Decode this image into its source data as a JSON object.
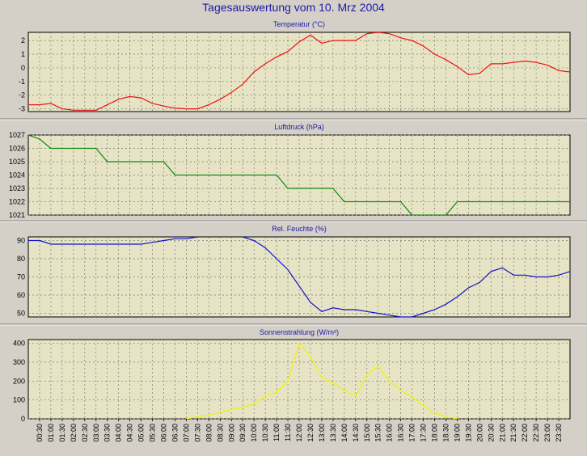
{
  "title": "Tagesauswertung vom 10. Mrz 2004",
  "chart_data": [
    {
      "type": "line",
      "title": "Temperatur (°C)",
      "color": "#ee1111",
      "ylim": [
        -3.2,
        2.6
      ],
      "yticks": [
        -3,
        -2,
        -1,
        0,
        1,
        2
      ],
      "x": [
        0,
        0.5,
        1,
        1.5,
        2,
        2.5,
        3,
        3.5,
        4,
        4.5,
        5,
        5.5,
        6,
        6.5,
        7,
        7.5,
        8,
        8.5,
        9,
        9.5,
        10,
        10.5,
        11,
        11.5,
        12,
        12.5,
        13,
        13.5,
        14,
        14.5,
        15,
        15.5,
        16,
        16.5,
        17,
        17.5,
        18,
        18.5,
        19,
        19.5,
        20,
        20.5,
        21,
        21.5,
        22,
        22.5,
        23,
        23.5,
        24
      ],
      "values": [
        -2.7,
        -2.7,
        -2.6,
        -3.0,
        -3.1,
        -3.1,
        -3.1,
        -2.7,
        -2.3,
        -2.1,
        -2.2,
        -2.6,
        -2.8,
        -2.95,
        -3.0,
        -3.0,
        -2.7,
        -2.3,
        -1.8,
        -1.2,
        -0.3,
        0.3,
        0.8,
        1.2,
        1.9,
        2.4,
        1.8,
        2.0,
        2.0,
        2.0,
        2.5,
        2.6,
        2.5,
        2.2,
        2.0,
        1.6,
        1.0,
        0.6,
        0.1,
        -0.5,
        -0.4,
        0.3,
        0.3,
        0.4,
        0.5,
        0.4,
        0.2,
        -0.2,
        -0.3
      ]
    },
    {
      "type": "line",
      "title": "Luftdruck (hPa)",
      "color": "#118811",
      "ylim": [
        1021,
        1027
      ],
      "yticks": [
        1021,
        1022,
        1023,
        1024,
        1025,
        1026,
        1027
      ],
      "x": [
        0,
        0.5,
        1,
        1.5,
        2,
        2.5,
        3,
        3.5,
        4,
        4.5,
        5,
        5.5,
        6,
        6.5,
        7,
        7.5,
        8,
        8.5,
        9,
        9.5,
        10,
        10.5,
        11,
        11.5,
        12,
        12.5,
        13,
        13.5,
        14,
        14.5,
        15,
        15.5,
        16,
        16.5,
        17,
        17.5,
        18,
        18.5,
        19,
        19.5,
        20,
        20.5,
        21,
        21.5,
        22,
        22.5,
        23,
        23.5,
        24
      ],
      "values": [
        1027,
        1026.7,
        1026,
        1026,
        1026,
        1026,
        1026,
        1025,
        1025,
        1025,
        1025,
        1025,
        1025,
        1024,
        1024,
        1024,
        1024,
        1024,
        1024,
        1024,
        1024,
        1024,
        1024,
        1023,
        1023,
        1023,
        1023,
        1023,
        1022,
        1022,
        1022,
        1022,
        1022,
        1022,
        1021,
        1021,
        1021,
        1021,
        1022,
        1022,
        1022,
        1022,
        1022,
        1022,
        1022,
        1022,
        1022,
        1022,
        1022
      ]
    },
    {
      "type": "line",
      "title": "Rel. Feuchte (%)",
      "color": "#1111cc",
      "ylim": [
        48,
        92
      ],
      "yticks": [
        50,
        60,
        70,
        80,
        90
      ],
      "x": [
        0,
        0.5,
        1,
        1.5,
        2,
        2.5,
        3,
        3.5,
        4,
        4.5,
        5,
        5.5,
        6,
        6.5,
        7,
        7.5,
        8,
        8.5,
        9,
        9.5,
        10,
        10.5,
        11,
        11.5,
        12,
        12.5,
        13,
        13.5,
        14,
        14.5,
        15,
        15.5,
        16,
        16.5,
        17,
        17.5,
        18,
        18.5,
        19,
        19.5,
        20,
        20.5,
        21,
        21.5,
        22,
        22.5,
        23,
        23.5,
        24
      ],
      "values": [
        90,
        90,
        88,
        88,
        88,
        88,
        88,
        88,
        88,
        88,
        88,
        89,
        90,
        91,
        91,
        92,
        92,
        92,
        92,
        92,
        90,
        86,
        80,
        74,
        65,
        56,
        51,
        53,
        52,
        52,
        51,
        50,
        49,
        48,
        48,
        50,
        52,
        55,
        59,
        64,
        67,
        73,
        75,
        71,
        71,
        70,
        70,
        71,
        73
      ]
    },
    {
      "type": "line",
      "title": "Sonnenstrahlung (W/m²)",
      "color": "#f2f200",
      "ylim": [
        0,
        420
      ],
      "yticks": [
        0,
        100,
        200,
        300,
        400
      ],
      "x": [
        7,
        7.5,
        8,
        8.5,
        9,
        9.5,
        10,
        10.5,
        11,
        11.5,
        12,
        12.5,
        13,
        13.5,
        14,
        14.5,
        15,
        15.5,
        16,
        16.5,
        17,
        17.5,
        18,
        18.5,
        19
      ],
      "values": [
        0,
        10,
        20,
        35,
        50,
        60,
        80,
        120,
        140,
        200,
        400,
        330,
        220,
        190,
        150,
        120,
        230,
        280,
        200,
        150,
        120,
        70,
        30,
        10,
        0
      ]
    }
  ],
  "xticks": [
    "00:30",
    "01:00",
    "01:30",
    "02:00",
    "02:30",
    "03:00",
    "03:30",
    "04:00",
    "04:30",
    "05:00",
    "05:30",
    "06:00",
    "06:30",
    "07:00",
    "07:30",
    "08:00",
    "08:30",
    "09:00",
    "09:30",
    "10:00",
    "10:30",
    "11:00",
    "11:30",
    "12:00",
    "12:30",
    "13:00",
    "13:30",
    "14:00",
    "14:30",
    "15:00",
    "15:30",
    "16:00",
    "16:30",
    "17:00",
    "17:30",
    "18:00",
    "18:30",
    "19:00",
    "19:30",
    "20:00",
    "20:30",
    "21:00",
    "21:30",
    "22:00",
    "22:30",
    "23:00",
    "23:30"
  ]
}
